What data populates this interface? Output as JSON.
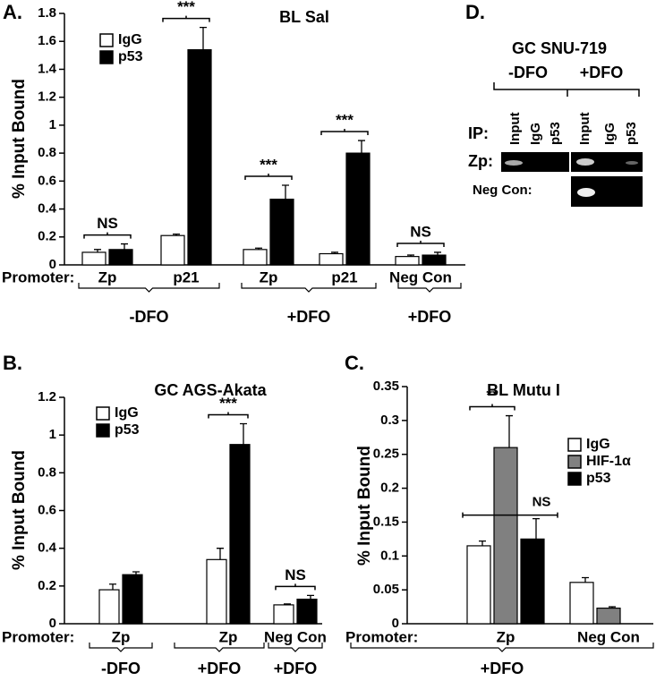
{
  "chart_data": [
    {
      "type": "bar",
      "panel_label": "A.",
      "title": "BL Sal",
      "ylabel": "% Input Bound",
      "x_prefix": "Promoter:",
      "categories": [
        "Zp",
        "p21",
        "Zp",
        "p21",
        "Neg Con"
      ],
      "series": [
        {
          "name": "IgG",
          "color": "#ffffff",
          "values": [
            0.09,
            0.21,
            0.11,
            0.08,
            0.06
          ],
          "errors": [
            0.02,
            0.01,
            0.01,
            0.01,
            0.01
          ]
        },
        {
          "name": "p53",
          "color": "#000000",
          "values": [
            0.11,
            1.54,
            0.47,
            0.8,
            0.07
          ],
          "errors": [
            0.04,
            0.16,
            0.1,
            0.09,
            0.02
          ]
        }
      ],
      "annotations": [
        "NS",
        "***",
        "***",
        "***",
        "NS"
      ],
      "groups": [
        "-DFO",
        "+DFO",
        "+DFO"
      ],
      "ylim": [
        0,
        1.8
      ],
      "yticks": [
        0,
        0.2,
        0.4,
        0.6,
        0.8,
        1,
        1.2,
        1.4,
        1.6,
        1.8
      ]
    },
    {
      "type": "bar",
      "panel_label": "B.",
      "title": "GC AGS-Akata",
      "ylabel": "% Input Bound",
      "x_prefix": "Promoter:",
      "categories": [
        "Zp",
        "Zp",
        "Neg Con"
      ],
      "series": [
        {
          "name": "IgG",
          "color": "#ffffff",
          "values": [
            0.18,
            0.34,
            0.1
          ],
          "errors": [
            0.03,
            0.06,
            0.005
          ]
        },
        {
          "name": "p53",
          "color": "#000000",
          "values": [
            0.26,
            0.95,
            0.13
          ],
          "errors": [
            0.015,
            0.11,
            0.02
          ]
        }
      ],
      "annotations": [
        null,
        "***",
        "NS"
      ],
      "groups": [
        "-DFO",
        "+DFO",
        "+DFO"
      ],
      "ylim": [
        0,
        1.2
      ],
      "yticks": [
        0,
        0.2,
        0.4,
        0.6,
        0.8,
        1,
        1.2
      ]
    },
    {
      "type": "bar",
      "panel_label": "C.",
      "title": "BL Mutu I",
      "ylabel": "% Input Bound",
      "x_prefix": "Promoter:",
      "categories": [
        "Zp",
        "Neg Con"
      ],
      "series": [
        {
          "name": "IgG",
          "color": "#ffffff",
          "values": [
            0.115,
            0.061
          ],
          "errors": [
            0.007,
            0.007
          ]
        },
        {
          "name": "HIF-1α",
          "color": "#808080",
          "values": [
            0.26,
            0.023
          ],
          "errors": [
            0.047,
            0.002
          ]
        },
        {
          "name": "p53",
          "color": "#000000",
          "values": [
            0.125,
            null
          ],
          "errors": [
            0.03,
            null
          ]
        }
      ],
      "annotations": [
        "**",
        "NS"
      ],
      "groups": [
        "+DFO"
      ],
      "ylim": [
        0,
        0.35
      ],
      "yticks": [
        0,
        0.05,
        0.1,
        0.15,
        0.2,
        0.25,
        0.3,
        0.35
      ]
    }
  ],
  "gel": {
    "panel_label": "D.",
    "title": "GC SNU-719",
    "conditions": [
      "-DFO",
      "+DFO"
    ],
    "ip_label": "IP:",
    "lanes": [
      "Input",
      "IgG",
      "p53",
      "Input",
      "IgG",
      "p53"
    ],
    "rows": [
      "Zp:",
      "Neg Con:"
    ]
  }
}
